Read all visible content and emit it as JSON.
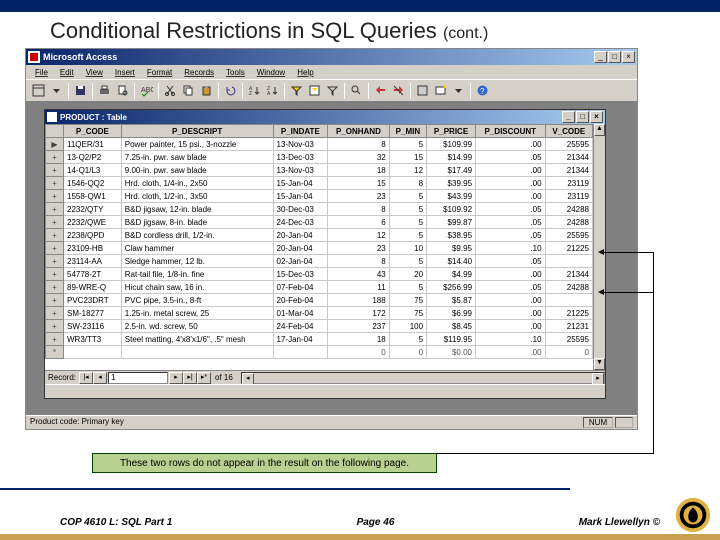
{
  "slide": {
    "title": "Conditional Restrictions in SQL Queries",
    "cont": "(cont.)"
  },
  "app": {
    "title": "Microsoft Access",
    "menus": [
      "File",
      "Edit",
      "View",
      "Insert",
      "Format",
      "Records",
      "Tools",
      "Window",
      "Help"
    ]
  },
  "table_window": {
    "title": "PRODUCT : Table",
    "columns": [
      "P_CODE",
      "P_DESCRIPT",
      "P_INDATE",
      "P_ONHAND",
      "P_MIN",
      "P_PRICE",
      "P_DISCOUNT",
      "V_CODE"
    ],
    "rows": [
      [
        "11QER/31",
        "Power painter, 15 psi., 3-nozzle",
        "13-Nov-03",
        "8",
        "5",
        "$109.99",
        ".00",
        "25595"
      ],
      [
        "13-Q2/P2",
        "7.25-in. pwr. saw blade",
        "13-Dec-03",
        "32",
        "15",
        "$14.99",
        ".05",
        "21344"
      ],
      [
        "14-Q1/L3",
        "9.00-in. pwr. saw blade",
        "13-Nov-03",
        "18",
        "12",
        "$17.49",
        ".00",
        "21344"
      ],
      [
        "1546-QQ2",
        "Hrd. cloth, 1/4-in., 2x50",
        "15-Jan-04",
        "15",
        "8",
        "$39.95",
        ".00",
        "23119"
      ],
      [
        "1558-QW1",
        "Hrd. cloth, 1/2-in., 3x50",
        "15-Jan-04",
        "23",
        "5",
        "$43.99",
        ".00",
        "23119"
      ],
      [
        "2232/QTY",
        "B&D jigsaw, 12-in. blade",
        "30-Dec-03",
        "8",
        "5",
        "$109.92",
        ".05",
        "24288"
      ],
      [
        "2232/QWE",
        "B&D jigsaw, 8-in. blade",
        "24-Dec-03",
        "6",
        "5",
        "$99.87",
        ".05",
        "24288"
      ],
      [
        "2238/QPD",
        "B&D cordless drill, 1/2-in.",
        "20-Jan-04",
        "12",
        "5",
        "$38.95",
        ".05",
        "25595"
      ],
      [
        "23109-HB",
        "Claw hammer",
        "20-Jan-04",
        "23",
        "10",
        "$9.95",
        ".10",
        "21225"
      ],
      [
        "23114-AA",
        "Sledge hammer, 12 lb.",
        "02-Jan-04",
        "8",
        "5",
        "$14.40",
        ".05",
        ""
      ],
      [
        "54778-2T",
        "Rat-tail file, 1/8-in. fine",
        "15-Dec-03",
        "43",
        "20",
        "$4.99",
        ".00",
        "21344"
      ],
      [
        "89-WRE-Q",
        "Hicut chain saw, 16 in.",
        "07-Feb-04",
        "11",
        "5",
        "$256.99",
        ".05",
        "24288"
      ],
      [
        "PVC23DRT",
        "PVC pipe, 3.5-in., 8-ft",
        "20-Feb-04",
        "188",
        "75",
        "$5.87",
        ".00",
        ""
      ],
      [
        "SM-18277",
        "1.25-in. metal screw, 25",
        "01-Mar-04",
        "172",
        "75",
        "$6.99",
        ".00",
        "21225"
      ],
      [
        "SW-23116",
        "2.5-in. wd. screw, 50",
        "24-Feb-04",
        "237",
        "100",
        "$8.45",
        ".00",
        "21231"
      ],
      [
        "WR3/TT3",
        "Steel matting, 4'x8'x1/6\", .5\" mesh",
        "17-Jan-04",
        "18",
        "5",
        "$119.95",
        ".10",
        "25595"
      ]
    ],
    "newrow": [
      "",
      "",
      "",
      "0",
      "0",
      "$0.00",
      ".00",
      "0"
    ],
    "record_label": "Record:",
    "record_pos": "1",
    "record_of": "of 16",
    "status": "Product code: Primary key"
  },
  "statusbar": {
    "left": "Product code: Primary key",
    "num": "NUM"
  },
  "callout": {
    "text": "These two rows do not appear in the result on the following page."
  },
  "footer": {
    "left": "COP 4610 L: SQL Part 1",
    "center": "Page 46",
    "right": "Mark Llewellyn ©"
  },
  "colors": {
    "navy": "#002366",
    "callout_bg": "#b8d090",
    "logo_gold": "#e0b040"
  }
}
